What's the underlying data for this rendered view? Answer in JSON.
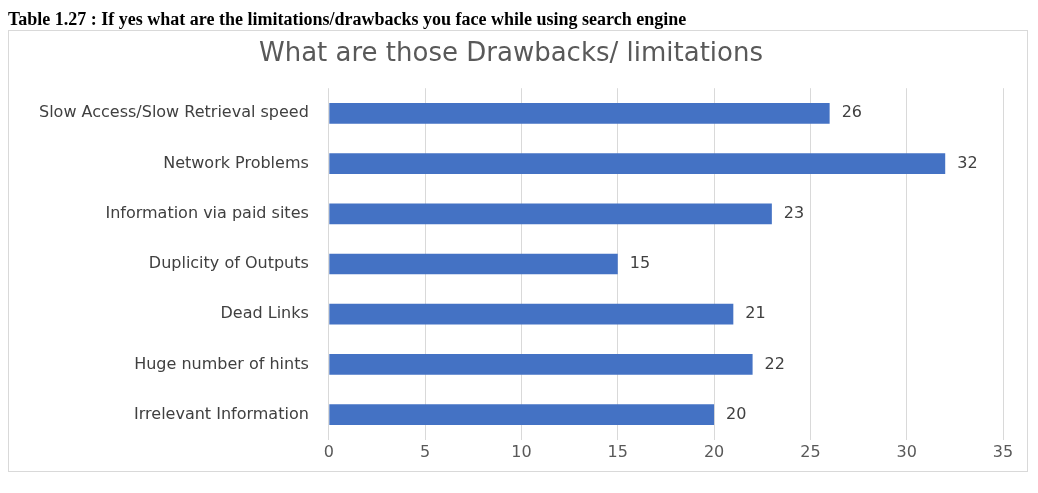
{
  "chart_data": {
    "type": "bar",
    "orientation": "horizontal",
    "title": "What are those Drawbacks/ limitations",
    "annotations": [
      "Table 1.27 : If yes what are the limitations/drawbacks you face while using search engine"
    ],
    "categories": [
      "Slow Access/Slow Retrieval speed",
      "Network Problems",
      "Information via paid sites",
      "Duplicity of Outputs",
      "Dead Links",
      "Huge number of hints",
      "Irrelevant Information"
    ],
    "values": [
      26,
      32,
      23,
      15,
      21,
      22,
      20
    ],
    "color": "#4472c4",
    "xlim": [
      0,
      35
    ],
    "xticks": [
      0,
      5,
      10,
      15,
      20,
      25,
      30,
      35
    ],
    "grid": "x",
    "data_labels": true,
    "legend": false
  }
}
